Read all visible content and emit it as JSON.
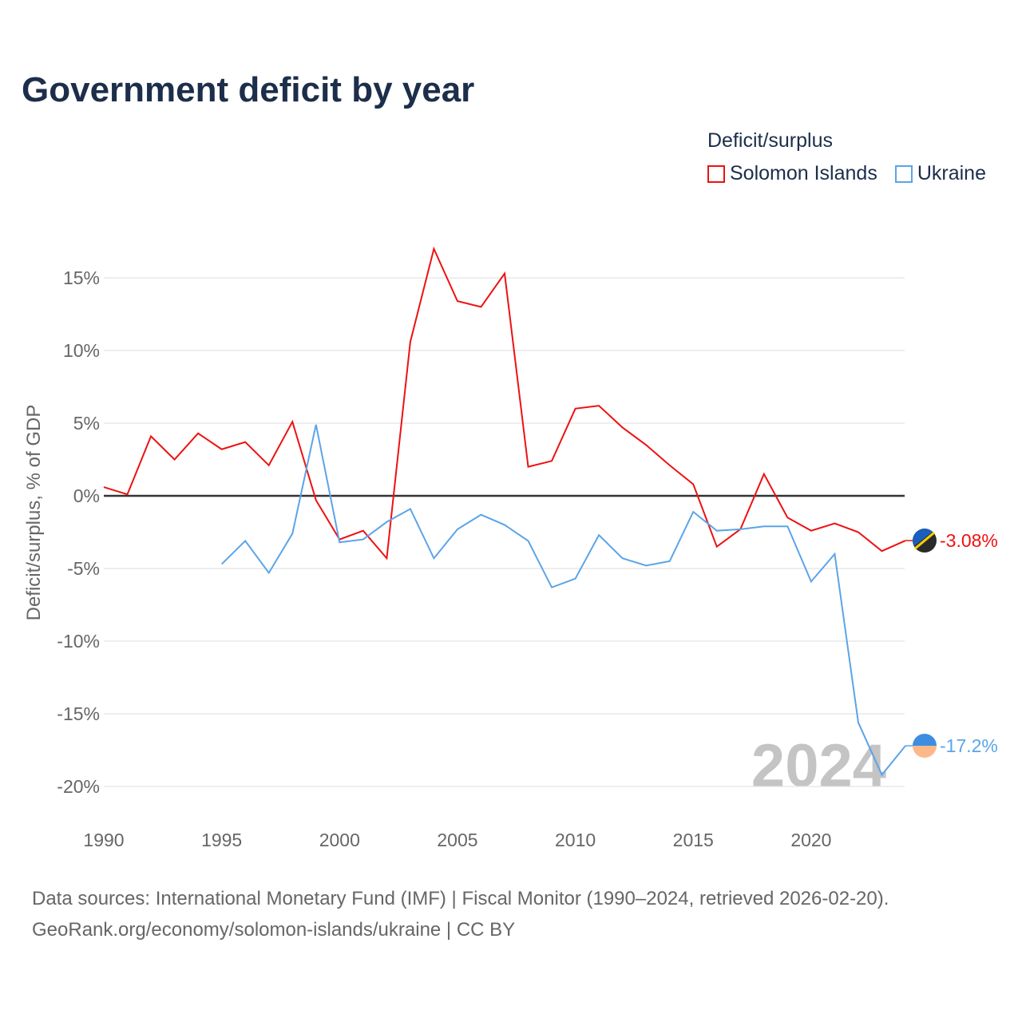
{
  "chart_data": {
    "type": "line",
    "title": "Government deficit by year",
    "xlabel": "",
    "ylabel": "Deficit/surplus, % of GDP",
    "xlim": [
      1990,
      2024
    ],
    "ylim": [
      -20,
      17
    ],
    "xticks": [
      1990,
      1995,
      2000,
      2005,
      2010,
      2015,
      2020
    ],
    "xtick_labels": [
      "1990",
      "1995",
      "2000",
      "2005",
      "2010",
      "2015",
      "2020"
    ],
    "yticks": [
      15,
      10,
      5,
      0,
      -5,
      -10,
      -15,
      -20
    ],
    "ytick_labels": [
      "15%",
      "10%",
      "5%",
      "0%",
      "-5%",
      "-10%",
      "-15%",
      "-20%"
    ],
    "grid": true,
    "legend": {
      "title": "Deficit/surplus",
      "placement": "top-right"
    },
    "watermark": "2024",
    "series": [
      {
        "name": "Solomon Islands",
        "color": "#ee1111",
        "end_label": "-3.08%",
        "x": [
          1990,
          1991,
          1992,
          1993,
          1994,
          1995,
          1996,
          1997,
          1998,
          1999,
          2000,
          2001,
          2002,
          2003,
          2004,
          2005,
          2006,
          2007,
          2008,
          2009,
          2010,
          2011,
          2012,
          2013,
          2014,
          2015,
          2016,
          2017,
          2018,
          2019,
          2020,
          2021,
          2022,
          2023,
          2024
        ],
        "values": [
          0.6,
          0.1,
          4.1,
          2.5,
          4.3,
          3.2,
          3.7,
          2.1,
          5.1,
          -0.3,
          -3.0,
          -2.4,
          -4.3,
          10.6,
          17.0,
          13.4,
          13.0,
          15.3,
          2.0,
          2.4,
          6.0,
          6.2,
          4.7,
          3.5,
          2.1,
          0.8,
          -3.5,
          -2.3,
          1.5,
          -1.5,
          -2.4,
          -1.9,
          -2.5,
          -3.8,
          -3.08
        ]
      },
      {
        "name": "Ukraine",
        "color": "#5ba4e8",
        "end_label": "-17.2%",
        "x": [
          1995,
          1996,
          1997,
          1998,
          1999,
          2000,
          2001,
          2002,
          2003,
          2004,
          2005,
          2006,
          2007,
          2008,
          2009,
          2010,
          2011,
          2012,
          2013,
          2014,
          2015,
          2016,
          2017,
          2018,
          2019,
          2020,
          2021,
          2022,
          2023,
          2024
        ],
        "values": [
          -4.7,
          -3.1,
          -5.3,
          -2.6,
          4.9,
          -3.2,
          -3.0,
          -1.8,
          -0.9,
          -4.3,
          -2.3,
          -1.3,
          -2.0,
          -3.1,
          -6.3,
          -5.7,
          -2.7,
          -4.3,
          -4.8,
          -4.5,
          -1.1,
          -2.4,
          -2.3,
          -2.1,
          -2.1,
          -5.9,
          -4.0,
          -15.6,
          -19.2,
          -17.2
        ]
      }
    ]
  },
  "footer": {
    "line1": "Data sources: International Monetary Fund (IMF) | Fiscal Monitor (1990–2024, retrieved 2026-02-20).",
    "line2": "GeoRank.org/economy/solomon-islands/ukraine | CC BY"
  }
}
